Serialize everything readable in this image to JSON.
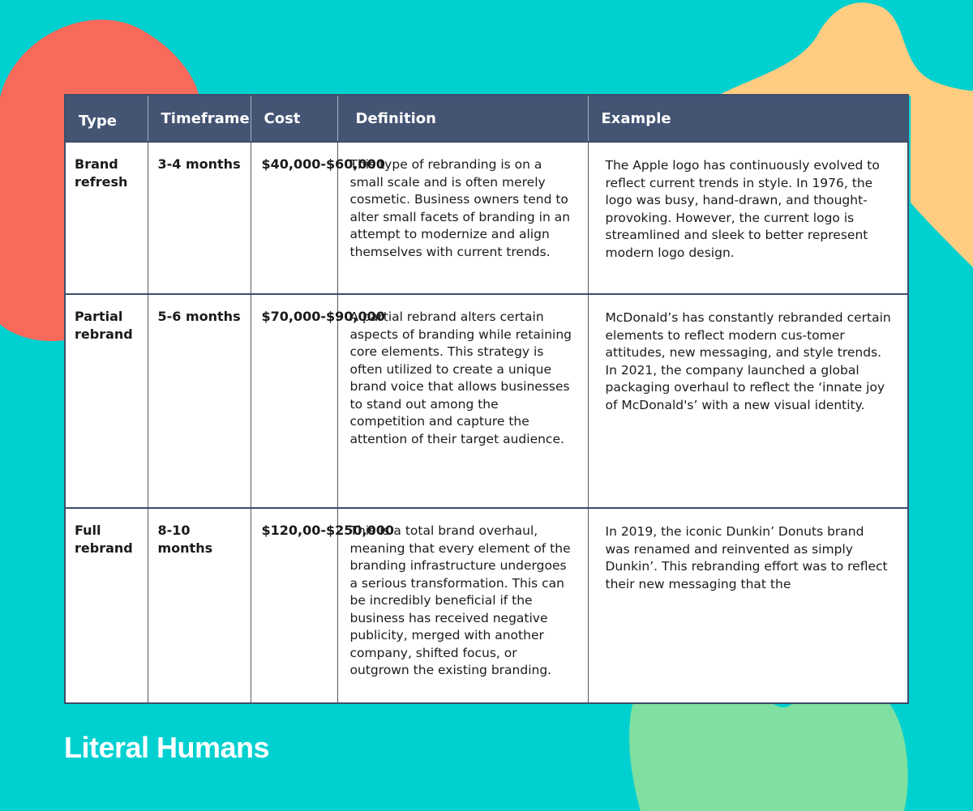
{
  "colors": {
    "background": "#00d1d0",
    "header_bg": "#445473",
    "blob_coral": "#f86a5b",
    "blob_peach": "#ffcd82",
    "blob_green": "#7fe0a1"
  },
  "table": {
    "headers": [
      "Type",
      "Timeframe",
      "Cost",
      "Definition",
      "Example"
    ],
    "rows": [
      {
        "type": "Brand refresh",
        "timeframe": "3-4 months",
        "cost": "$40,000-$60,000",
        "definition": "This type of rebranding is on a small scale and is often merely cosmetic. Business owners tend to alter small facets of branding in an attempt to modernize and align themselves with current trends.",
        "example": "The Apple logo has continuously evolved to reflect current trends in style. In 1976, the logo was busy, hand-drawn, and thought-provoking. However, the current logo is streamlined and sleek to better represent modern logo design."
      },
      {
        "type": "Partial rebrand",
        "timeframe": "5-6 months",
        "cost": "$70,000-$90,000",
        "definition": "A partial rebrand alters certain aspects of branding while retaining core elements. This strategy is often utilized to create a unique brand voice that allows businesses to stand out among the competition and capture the attention of their target audience.",
        "example": "McDonald’s has constantly rebranded certain elements to reflect modern cus-tomer attitudes, new messaging, and style trends. In 2021, the company launched a global packaging overhaul to reflect the ‘innate joy of McDonald's’ with a new visual identity."
      },
      {
        "type": "Full rebrand",
        "timeframe": "8-10 months",
        "cost": "$120,00-$250,000",
        "definition": "This is a total brand overhaul, meaning that every element of the branding infrastructure undergoes a serious transformation. This can be incredibly beneficial if the business has received negative publicity, merged with another company, shifted focus, or outgrown the existing branding.",
        "example": "In 2019, the iconic Dunkin’ Donuts brand was renamed and reinvented as simply Dunkin’. This rebranding effort was to reflect their new messaging that the"
      }
    ]
  },
  "brand_logo": "Literal Humans"
}
